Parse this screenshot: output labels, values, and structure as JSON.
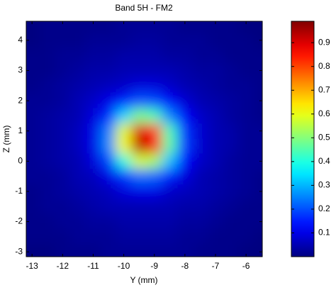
{
  "chart_data": {
    "type": "heatmap",
    "title": "Band 5H - FM2",
    "xlabel": "Y (mm)",
    "ylabel": "Z (mm)",
    "x": [
      -13,
      -12.5,
      -12,
      -11.5,
      -11,
      -10.5,
      -10,
      -9.5,
      -9,
      -8.5,
      -8,
      -7.5,
      -7,
      -6.5,
      -6,
      -5.5
    ],
    "y": [
      4.5,
      4,
      3.5,
      3,
      2.5,
      2,
      1.5,
      1,
      0.5,
      0,
      -0.5,
      -1,
      -1.5,
      -2,
      -2.5,
      -3
    ],
    "values": [
      [
        0,
        0.01,
        0.01,
        0.01,
        0.01,
        0.01,
        0.02,
        0.02,
        0.02,
        0.02,
        0.01,
        0.01,
        0.01,
        0.01,
        0,
        0
      ],
      [
        0,
        0.01,
        0.01,
        0.01,
        0.02,
        0.02,
        0.02,
        0.03,
        0.03,
        0.02,
        0.02,
        0.02,
        0.01,
        0.01,
        0.01,
        0
      ],
      [
        0.01,
        0.01,
        0.02,
        0.02,
        0.03,
        0.03,
        0.04,
        0.04,
        0.04,
        0.03,
        0.03,
        0.02,
        0.02,
        0.01,
        0.01,
        0.01
      ],
      [
        0.01,
        0.01,
        0.02,
        0.03,
        0.04,
        0.04,
        0.05,
        0.05,
        0.05,
        0.05,
        0.04,
        0.03,
        0.03,
        0.02,
        0.01,
        0.01
      ],
      [
        0.01,
        0.02,
        0.03,
        0.04,
        0.05,
        0.06,
        0.07,
        0.09,
        0.09,
        0.07,
        0.05,
        0.04,
        0.03,
        0.02,
        0.02,
        0.01
      ],
      [
        0.02,
        0.02,
        0.03,
        0.05,
        0.07,
        0.1,
        0.15,
        0.2,
        0.19,
        0.12,
        0.08,
        0.05,
        0.04,
        0.03,
        0.02,
        0.01
      ],
      [
        0.02,
        0.03,
        0.04,
        0.05,
        0.09,
        0.16,
        0.33,
        0.49,
        0.44,
        0.25,
        0.12,
        0.07,
        0.05,
        0.03,
        0.02,
        0.01
      ],
      [
        0.02,
        0.03,
        0.04,
        0.06,
        0.1,
        0.25,
        0.59,
        0.9,
        0.81,
        0.44,
        0.17,
        0.08,
        0.05,
        0.04,
        0.02,
        0.02
      ],
      [
        0.02,
        0.03,
        0.04,
        0.06,
        0.1,
        0.26,
        0.61,
        0.94,
        0.85,
        0.46,
        0.18,
        0.08,
        0.05,
        0.04,
        0.02,
        0.02
      ],
      [
        0.02,
        0.03,
        0.04,
        0.05,
        0.09,
        0.19,
        0.4,
        0.58,
        0.53,
        0.31,
        0.13,
        0.07,
        0.05,
        0.03,
        0.02,
        0.02
      ],
      [
        0.02,
        0.02,
        0.03,
        0.05,
        0.06,
        0.1,
        0.17,
        0.23,
        0.22,
        0.15,
        0.09,
        0.05,
        0.04,
        0.03,
        0.02,
        0.01
      ],
      [
        0.01,
        0.02,
        0.03,
        0.04,
        0.05,
        0.06,
        0.09,
        0.1,
        0.1,
        0.07,
        0.06,
        0.05,
        0.04,
        0.03,
        0.02,
        0.01
      ],
      [
        0.01,
        0.02,
        0.02,
        0.03,
        0.04,
        0.05,
        0.05,
        0.05,
        0.05,
        0.05,
        0.04,
        0.04,
        0.03,
        0.02,
        0.01,
        0.01
      ],
      [
        0.01,
        0.01,
        0.02,
        0.02,
        0.03,
        0.03,
        0.04,
        0.04,
        0.04,
        0.04,
        0.03,
        0.03,
        0.02,
        0.01,
        0.01,
        0.01
      ],
      [
        0.01,
        0.01,
        0.01,
        0.02,
        0.02,
        0.02,
        0.03,
        0.03,
        0.03,
        0.03,
        0.02,
        0.02,
        0.01,
        0.01,
        0.01,
        0
      ],
      [
        0,
        0,
        0.01,
        0.01,
        0.01,
        0.02,
        0.02,
        0.02,
        0.02,
        0.02,
        0.02,
        0.01,
        0.01,
        0.01,
        0,
        0
      ]
    ],
    "xlim": [
      -13.19,
      -5.47
    ],
    "ylim": [
      -3.16,
      4.63
    ],
    "xticks": [
      -13,
      -12,
      -11,
      -10,
      -9,
      -8,
      -7,
      -6
    ],
    "yticks": [
      -3,
      -2,
      -1,
      0,
      1,
      2,
      3,
      4
    ],
    "colormap": "jet",
    "clim": [
      0,
      0.99
    ],
    "colorbar_ticks": [
      0.1,
      0.2,
      0.3,
      0.4,
      0.5,
      0.6,
      0.7,
      0.8,
      0.9
    ]
  }
}
